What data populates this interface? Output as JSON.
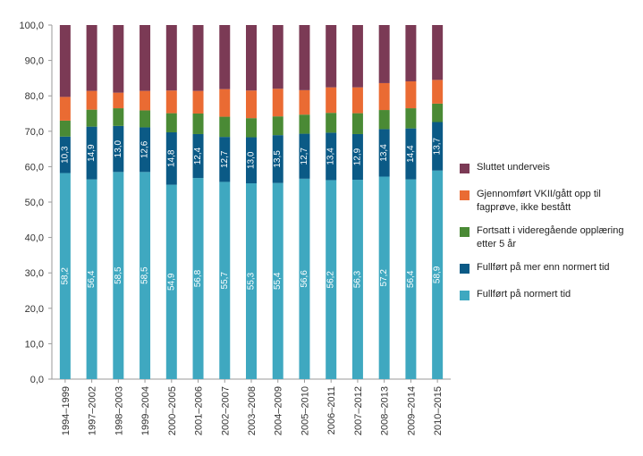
{
  "chart_data": {
    "type": "bar",
    "stacked": true,
    "title": "",
    "xlabel": "",
    "ylabel": "",
    "ylim": [
      0,
      100
    ],
    "ytick_labels": [
      "0,0",
      "10,0",
      "20,0",
      "30,0",
      "40,0",
      "50,0",
      "60,0",
      "70,0",
      "80,0",
      "90,0",
      "100,0"
    ],
    "categories": [
      "1994–1999",
      "1997–2002",
      "1998–2003",
      "1999–2004",
      "2000–2005",
      "2001–2006",
      "2002–2007",
      "2003–2008",
      "2004–2009",
      "2005–2010",
      "2006–2011",
      "2007–2012",
      "2008–2013",
      "2009–2014",
      "2010–2015"
    ],
    "series": [
      {
        "name": "Fullført på normert tid",
        "color": "#3fa8c0",
        "values": [
          58.2,
          56.4,
          58.5,
          58.5,
          54.9,
          56.8,
          55.7,
          55.3,
          55.4,
          56.6,
          56.2,
          56.3,
          57.2,
          56.4,
          58.9
        ],
        "labels": [
          "58,2",
          "56,4",
          "58,5",
          "58,5",
          "54,9",
          "56,8",
          "55,7",
          "55,3",
          "55,4",
          "56,6",
          "56,2",
          "56,3",
          "57,2",
          "56,4",
          "58,9"
        ]
      },
      {
        "name": "Fullført på mer enn normert tid",
        "color": "#0b5a86",
        "values": [
          10.3,
          14.9,
          13.0,
          12.6,
          14.8,
          12.4,
          12.7,
          13.0,
          13.5,
          12.7,
          13.4,
          12.9,
          13.4,
          14.4,
          13.7
        ],
        "labels": [
          "10,3",
          "14,9",
          "13,0",
          "12,6",
          "14,8",
          "12,4",
          "12,7",
          "13,0",
          "13,5",
          "12,7",
          "13,4",
          "12,9",
          "13,4",
          "14,4",
          "13,7"
        ]
      },
      {
        "name": "Fortsatt i videregående opplæring etter 5 år",
        "color": "#4a8a35",
        "values": [
          4.5,
          4.8,
          5.0,
          4.8,
          5.4,
          5.8,
          5.7,
          5.4,
          5.3,
          5.4,
          5.6,
          5.9,
          5.4,
          5.7,
          5.2
        ]
      },
      {
        "name": "Gjennomført VKII/gått opp til fagprøve, ikke bestått",
        "color": "#ea6b33",
        "values": [
          6.7,
          5.3,
          4.4,
          5.5,
          6.4,
          6.4,
          7.8,
          7.8,
          7.8,
          6.9,
          7.2,
          7.3,
          7.6,
          7.6,
          6.7
        ]
      },
      {
        "name": "Sluttet underveis",
        "color": "#7b3a55",
        "values": [
          20.3,
          18.6,
          19.1,
          18.6,
          18.5,
          18.6,
          18.1,
          18.5,
          18.0,
          18.4,
          17.6,
          17.6,
          16.4,
          15.9,
          15.5
        ]
      }
    ],
    "legend_position": "right",
    "legend_order": [
      "Sluttet underveis",
      "Gjennomført VKII/gått opp til fagprøve, ikke bestått",
      "Fortsatt i videregående opplæring etter 5 år",
      "Fullført på mer enn normert tid",
      "Fullført på normert tid"
    ]
  }
}
